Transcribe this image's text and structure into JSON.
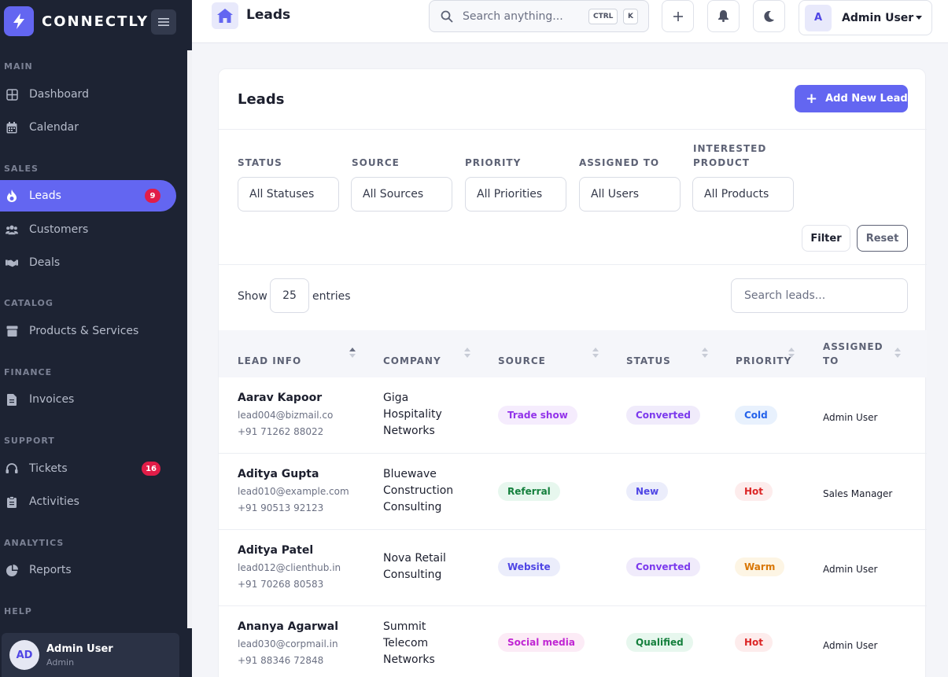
{
  "brand": {
    "name": "CONNECTLY"
  },
  "sidebar": {
    "sections": {
      "main": "MAIN",
      "sales": "SALES",
      "catalog": "CATALOG",
      "finance": "FINANCE",
      "support": "SUPPORT",
      "analytics": "ANALYTICS",
      "help": "HELP"
    },
    "items": {
      "dashboard": {
        "label": "Dashboard",
        "icon": "grid-icon"
      },
      "calendar": {
        "label": "Calendar",
        "icon": "calendar-icon"
      },
      "leads": {
        "label": "Leads",
        "icon": "fire-icon",
        "badge": "9"
      },
      "customers": {
        "label": "Customers",
        "icon": "users-icon"
      },
      "deals": {
        "label": "Deals",
        "icon": "handshake-icon"
      },
      "products": {
        "label": "Products & Services",
        "icon": "box-icon"
      },
      "invoices": {
        "label": "Invoices",
        "icon": "file-icon"
      },
      "tickets": {
        "label": "Tickets",
        "icon": "headset-icon",
        "badge": "16"
      },
      "activities": {
        "label": "Activities",
        "icon": "clipboard-icon"
      },
      "reports": {
        "label": "Reports",
        "icon": "pie-chart-icon"
      }
    },
    "user": {
      "initials": "AD",
      "name": "Admin User",
      "role": "Admin"
    }
  },
  "topbar": {
    "title": "Leads",
    "search_placeholder": "Search anything...",
    "kbd_ctrl": "CTRL",
    "kbd_k": "K",
    "user_initial": "A",
    "user_name": "Admin User"
  },
  "card": {
    "title": "Leads",
    "add_button": "Add New Lead",
    "filters": {
      "status": {
        "label": "STATUS",
        "value": "All Statuses"
      },
      "source": {
        "label": "SOURCE",
        "value": "All Sources"
      },
      "priority": {
        "label": "PRIORITY",
        "value": "All Priorities"
      },
      "assigned": {
        "label": "ASSIGNED TO",
        "value": "All Users"
      },
      "product": {
        "label_1": "INTERESTED",
        "label_2": "PRODUCT",
        "value": "All Products"
      }
    },
    "filter_button": "Filter",
    "reset_button": "Reset",
    "show_label": "Show",
    "entries_value": "25",
    "entries_label": "entries",
    "search_placeholder": "Search leads..."
  },
  "table": {
    "headers": {
      "lead_info": "LEAD INFO",
      "company": "COMPANY",
      "source": "SOURCE",
      "status": "STATUS",
      "priority": "PRIORITY",
      "assigned_1": "ASSIGNED",
      "assigned_2": "TO"
    },
    "rows": [
      {
        "name": "Aarav Kapoor",
        "email": "lead004@bizmail.co",
        "phone": "+91 71262 88022",
        "company": [
          "Giga",
          "Hospitality",
          "Networks"
        ],
        "source": "Trade show",
        "status": "Converted",
        "priority": "Cold",
        "assigned": "Admin User"
      },
      {
        "name": "Aditya Gupta",
        "email": "lead010@example.com",
        "phone": "+91 90513 92123",
        "company": [
          "Bluewave",
          "Construction",
          "Consulting"
        ],
        "source": "Referral",
        "status": "New",
        "priority": "Hot",
        "assigned": "Sales Manager"
      },
      {
        "name": "Aditya Patel",
        "email": "lead012@clienthub.in",
        "phone": "+91 70268 80583",
        "company": [
          "Nova Retail",
          "Consulting"
        ],
        "source": "Website",
        "status": "Converted",
        "priority": "Warm",
        "assigned": "Admin User"
      },
      {
        "name": "Ananya Agarwal",
        "email": "lead030@corpmail.in",
        "phone": "+91 88346 72848",
        "company": [
          "Summit",
          "Telecom",
          "Networks"
        ],
        "source": "Social media",
        "status": "Qualified",
        "priority": "Hot",
        "assigned": "Admin User"
      }
    ]
  },
  "colors": {
    "accent": "#6366f1",
    "sidebar_bg": "#1d2333",
    "badge": "#e11d48"
  }
}
